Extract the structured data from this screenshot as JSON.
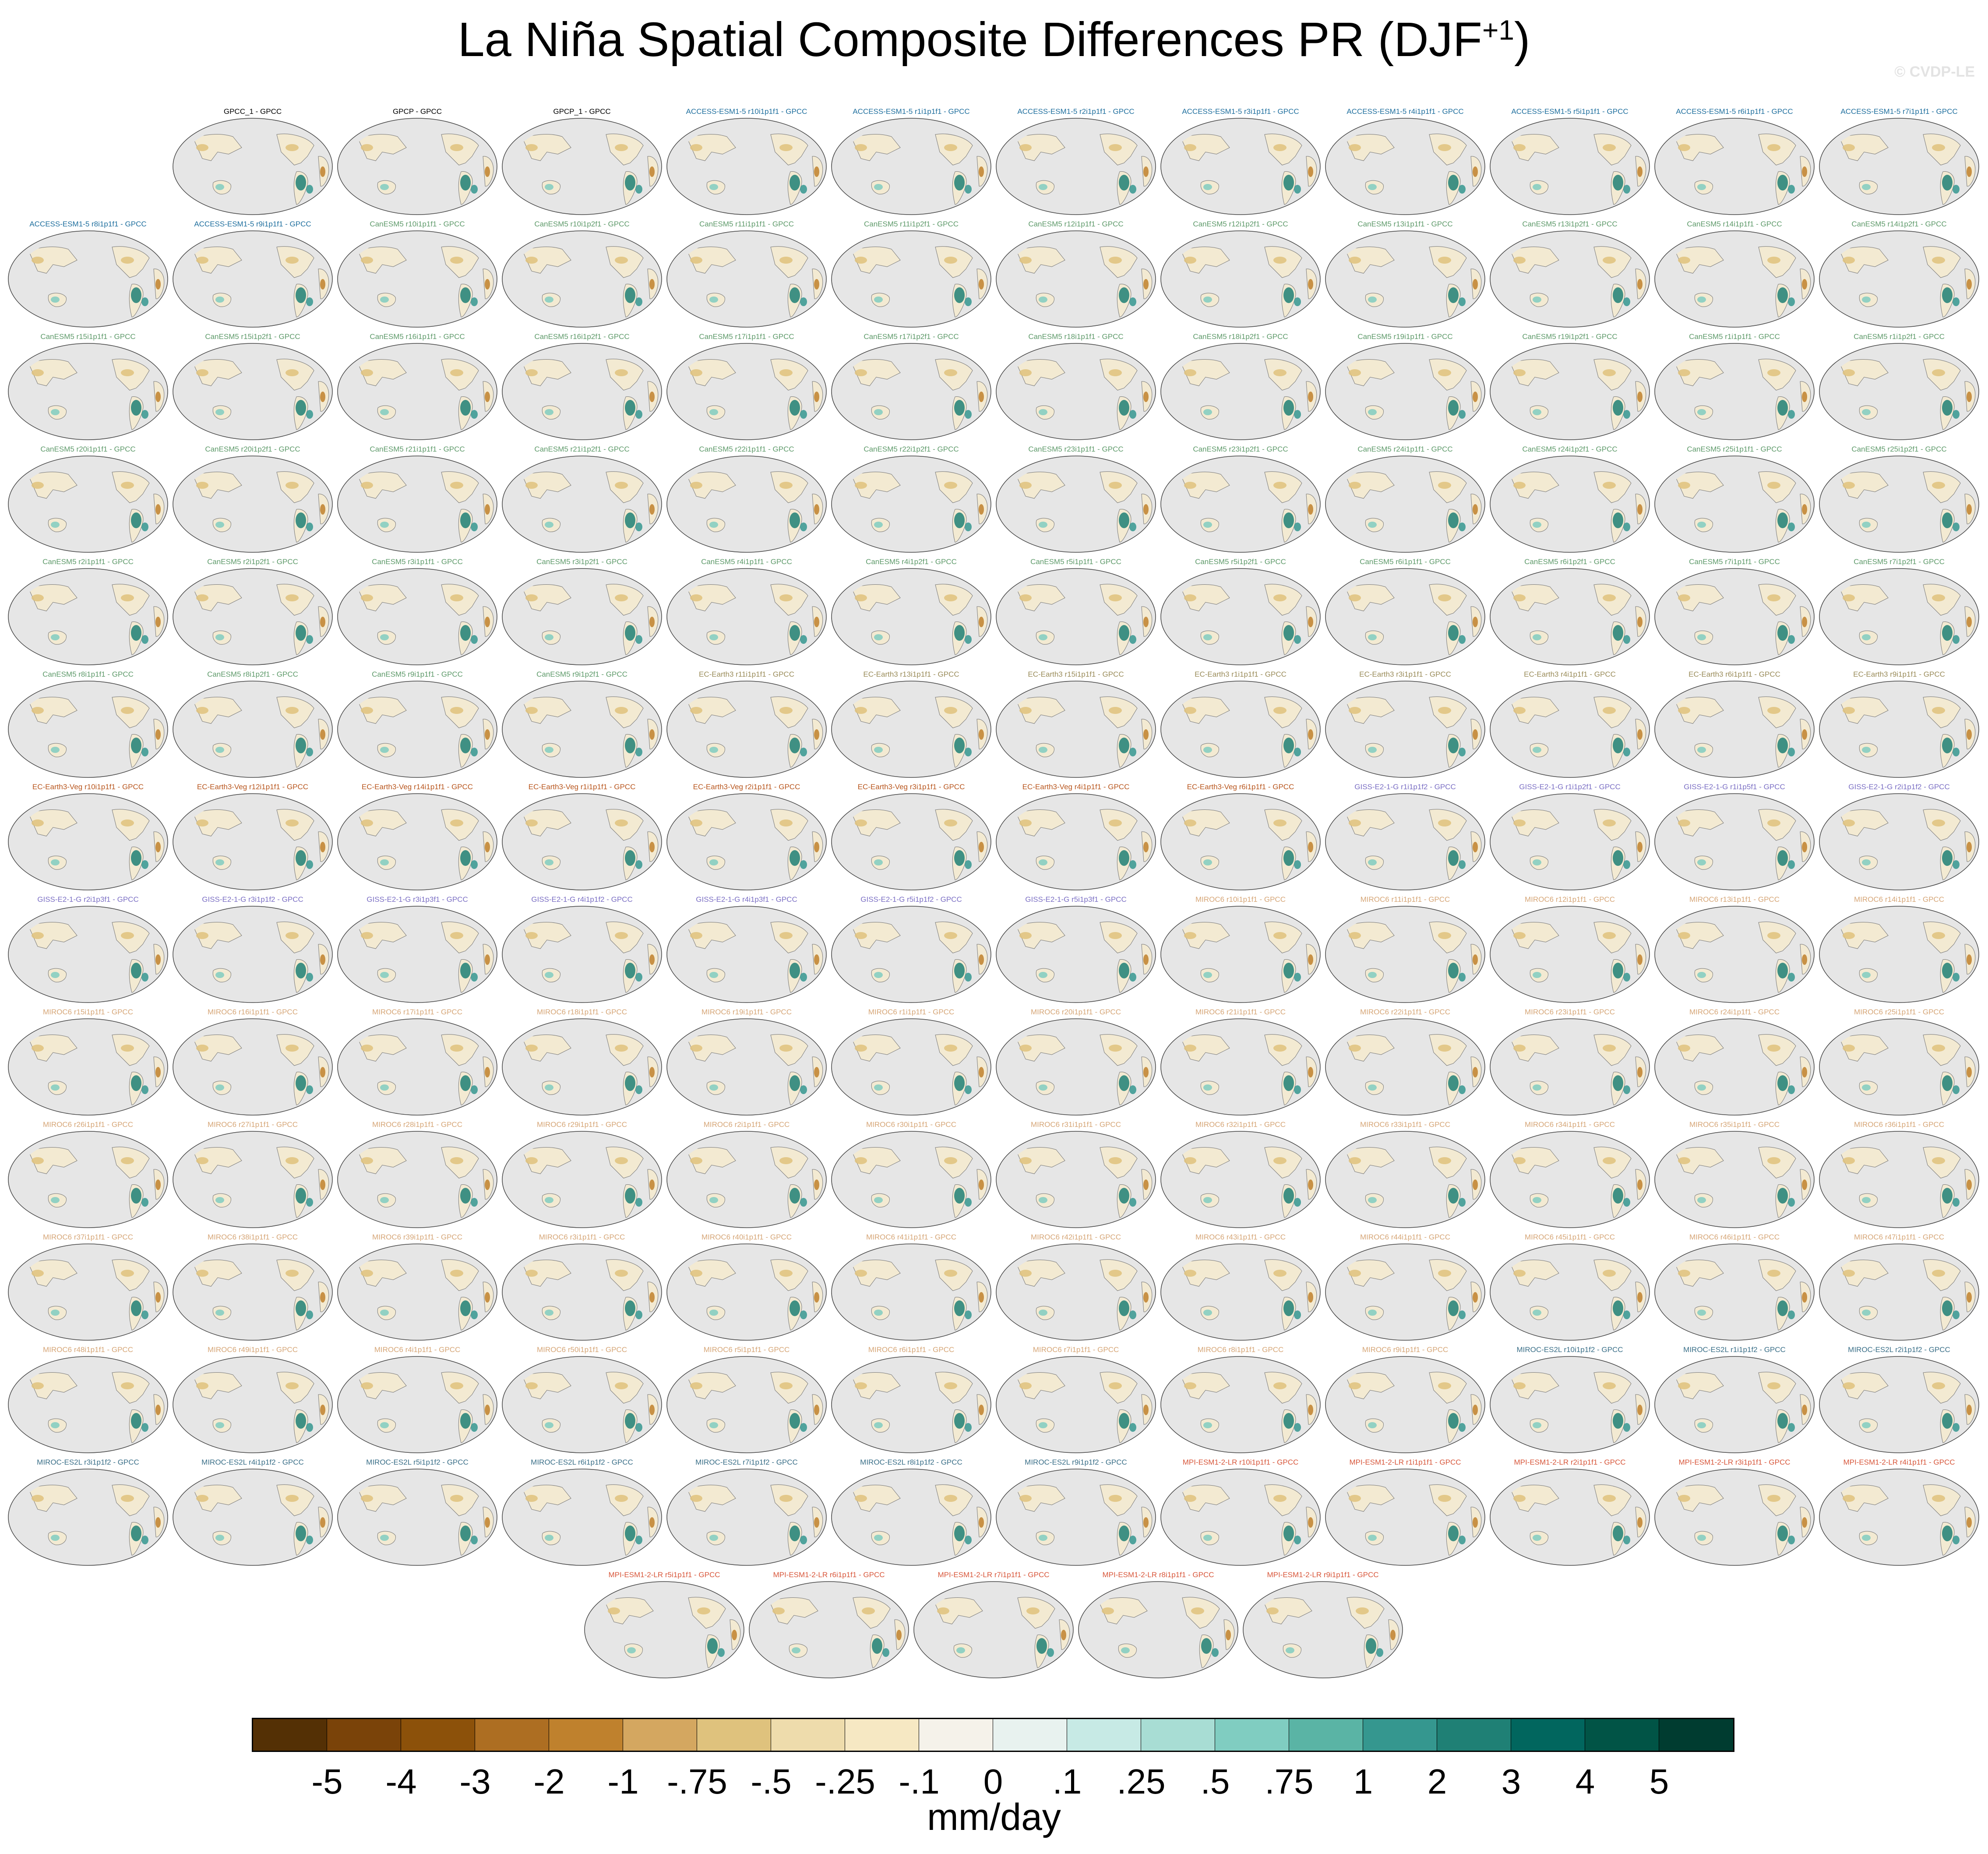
{
  "title": {
    "main": "La Niña Spatial Composite Differences PR (DJF",
    "superscript": "+1",
    "close": ")"
  },
  "watermark": "© CVDP-LE",
  "label_colors": {
    "obs": "#000000",
    "ACCESS": "#1f6f9e",
    "CanESM5": "#5e9a6a",
    "EC-Earth3": "#9a8c5a",
    "EC-Earth3-Veg": "#b8561e",
    "GISS": "#7b6fc4",
    "MIROC6": "#d6a677",
    "MIROC-ES2L": "#3a6f88",
    "MPI": "#d8573b"
  },
  "panels": [
    {
      "label": "GPCC_1 - GPCC",
      "group": "obs"
    },
    {
      "label": "GPCP - GPCC",
      "group": "obs"
    },
    {
      "label": "GPCP_1 - GPCC",
      "group": "obs"
    },
    {
      "label": "ACCESS-ESM1-5 r10i1p1f1 - GPCC",
      "group": "ACCESS"
    },
    {
      "label": "ACCESS-ESM1-5 r1i1p1f1 - GPCC",
      "group": "ACCESS"
    },
    {
      "label": "ACCESS-ESM1-5 r2i1p1f1 - GPCC",
      "group": "ACCESS"
    },
    {
      "label": "ACCESS-ESM1-5 r3i1p1f1 - GPCC",
      "group": "ACCESS"
    },
    {
      "label": "ACCESS-ESM1-5 r4i1p1f1 - GPCC",
      "group": "ACCESS"
    },
    {
      "label": "ACCESS-ESM1-5 r5i1p1f1 - GPCC",
      "group": "ACCESS"
    },
    {
      "label": "ACCESS-ESM1-5 r6i1p1f1 - GPCC",
      "group": "ACCESS"
    },
    {
      "label": "ACCESS-ESM1-5 r7i1p1f1 - GPCC",
      "group": "ACCESS"
    },
    {
      "label": "ACCESS-ESM1-5 r8i1p1f1 - GPCC",
      "group": "ACCESS"
    },
    {
      "label": "ACCESS-ESM1-5 r9i1p1f1 - GPCC",
      "group": "ACCESS"
    },
    {
      "label": "CanESM5 r10i1p1f1 - GPCC",
      "group": "CanESM5"
    },
    {
      "label": "CanESM5 r10i1p2f1 - GPCC",
      "group": "CanESM5"
    },
    {
      "label": "CanESM5 r11i1p1f1 - GPCC",
      "group": "CanESM5"
    },
    {
      "label": "CanESM5 r11i1p2f1 - GPCC",
      "group": "CanESM5"
    },
    {
      "label": "CanESM5 r12i1p1f1 - GPCC",
      "group": "CanESM5"
    },
    {
      "label": "CanESM5 r12i1p2f1 - GPCC",
      "group": "CanESM5"
    },
    {
      "label": "CanESM5 r13i1p1f1 - GPCC",
      "group": "CanESM5"
    },
    {
      "label": "CanESM5 r13i1p2f1 - GPCC",
      "group": "CanESM5"
    },
    {
      "label": "CanESM5 r14i1p1f1 - GPCC",
      "group": "CanESM5"
    },
    {
      "label": "CanESM5 r14i1p2f1 - GPCC",
      "group": "CanESM5"
    },
    {
      "label": "CanESM5 r15i1p1f1 - GPCC",
      "group": "CanESM5"
    },
    {
      "label": "CanESM5 r15i1p2f1 - GPCC",
      "group": "CanESM5"
    },
    {
      "label": "CanESM5 r16i1p1f1 - GPCC",
      "group": "CanESM5"
    },
    {
      "label": "CanESM5 r16i1p2f1 - GPCC",
      "group": "CanESM5"
    },
    {
      "label": "CanESM5 r17i1p1f1 - GPCC",
      "group": "CanESM5"
    },
    {
      "label": "CanESM5 r17i1p2f1 - GPCC",
      "group": "CanESM5"
    },
    {
      "label": "CanESM5 r18i1p1f1 - GPCC",
      "group": "CanESM5"
    },
    {
      "label": "CanESM5 r18i1p2f1 - GPCC",
      "group": "CanESM5"
    },
    {
      "label": "CanESM5 r19i1p1f1 - GPCC",
      "group": "CanESM5"
    },
    {
      "label": "CanESM5 r19i1p2f1 - GPCC",
      "group": "CanESM5"
    },
    {
      "label": "CanESM5 r1i1p1f1 - GPCC",
      "group": "CanESM5"
    },
    {
      "label": "CanESM5 r1i1p2f1 - GPCC",
      "group": "CanESM5"
    },
    {
      "label": "CanESM5 r20i1p1f1 - GPCC",
      "group": "CanESM5"
    },
    {
      "label": "CanESM5 r20i1p2f1 - GPCC",
      "group": "CanESM5"
    },
    {
      "label": "CanESM5 r21i1p1f1 - GPCC",
      "group": "CanESM5"
    },
    {
      "label": "CanESM5 r21i1p2f1 - GPCC",
      "group": "CanESM5"
    },
    {
      "label": "CanESM5 r22i1p1f1 - GPCC",
      "group": "CanESM5"
    },
    {
      "label": "CanESM5 r22i1p2f1 - GPCC",
      "group": "CanESM5"
    },
    {
      "label": "CanESM5 r23i1p1f1 - GPCC",
      "group": "CanESM5"
    },
    {
      "label": "CanESM5 r23i1p2f1 - GPCC",
      "group": "CanESM5"
    },
    {
      "label": "CanESM5 r24i1p1f1 - GPCC",
      "group": "CanESM5"
    },
    {
      "label": "CanESM5 r24i1p2f1 - GPCC",
      "group": "CanESM5"
    },
    {
      "label": "CanESM5 r25i1p1f1 - GPCC",
      "group": "CanESM5"
    },
    {
      "label": "CanESM5 r25i1p2f1 - GPCC",
      "group": "CanESM5"
    },
    {
      "label": "CanESM5 r2i1p1f1 - GPCC",
      "group": "CanESM5"
    },
    {
      "label": "CanESM5 r2i1p2f1 - GPCC",
      "group": "CanESM5"
    },
    {
      "label": "CanESM5 r3i1p1f1 - GPCC",
      "group": "CanESM5"
    },
    {
      "label": "CanESM5 r3i1p2f1 - GPCC",
      "group": "CanESM5"
    },
    {
      "label": "CanESM5 r4i1p1f1 - GPCC",
      "group": "CanESM5"
    },
    {
      "label": "CanESM5 r4i1p2f1 - GPCC",
      "group": "CanESM5"
    },
    {
      "label": "CanESM5 r5i1p1f1 - GPCC",
      "group": "CanESM5"
    },
    {
      "label": "CanESM5 r5i1p2f1 - GPCC",
      "group": "CanESM5"
    },
    {
      "label": "CanESM5 r6i1p1f1 - GPCC",
      "group": "CanESM5"
    },
    {
      "label": "CanESM5 r6i1p2f1 - GPCC",
      "group": "CanESM5"
    },
    {
      "label": "CanESM5 r7i1p1f1 - GPCC",
      "group": "CanESM5"
    },
    {
      "label": "CanESM5 r7i1p2f1 - GPCC",
      "group": "CanESM5"
    },
    {
      "label": "CanESM5 r8i1p1f1 - GPCC",
      "group": "CanESM5"
    },
    {
      "label": "CanESM5 r8i1p2f1 - GPCC",
      "group": "CanESM5"
    },
    {
      "label": "CanESM5 r9i1p1f1 - GPCC",
      "group": "CanESM5"
    },
    {
      "label": "CanESM5 r9i1p2f1 - GPCC",
      "group": "CanESM5"
    },
    {
      "label": "EC-Earth3 r11i1p1f1 - GPCC",
      "group": "EC-Earth3"
    },
    {
      "label": "EC-Earth3 r13i1p1f1 - GPCC",
      "group": "EC-Earth3"
    },
    {
      "label": "EC-Earth3 r15i1p1f1 - GPCC",
      "group": "EC-Earth3"
    },
    {
      "label": "EC-Earth3 r1i1p1f1 - GPCC",
      "group": "EC-Earth3"
    },
    {
      "label": "EC-Earth3 r3i1p1f1 - GPCC",
      "group": "EC-Earth3"
    },
    {
      "label": "EC-Earth3 r4i1p1f1 - GPCC",
      "group": "EC-Earth3"
    },
    {
      "label": "EC-Earth3 r6i1p1f1 - GPCC",
      "group": "EC-Earth3"
    },
    {
      "label": "EC-Earth3 r9i1p1f1 - GPCC",
      "group": "EC-Earth3"
    },
    {
      "label": "EC-Earth3-Veg r10i1p1f1 - GPCC",
      "group": "EC-Earth3-Veg"
    },
    {
      "label": "EC-Earth3-Veg r12i1p1f1 - GPCC",
      "group": "EC-Earth3-Veg"
    },
    {
      "label": "EC-Earth3-Veg r14i1p1f1 - GPCC",
      "group": "EC-Earth3-Veg"
    },
    {
      "label": "EC-Earth3-Veg r1i1p1f1 - GPCC",
      "group": "EC-Earth3-Veg"
    },
    {
      "label": "EC-Earth3-Veg r2i1p1f1 - GPCC",
      "group": "EC-Earth3-Veg"
    },
    {
      "label": "EC-Earth3-Veg r3i1p1f1 - GPCC",
      "group": "EC-Earth3-Veg"
    },
    {
      "label": "EC-Earth3-Veg r4i1p1f1 - GPCC",
      "group": "EC-Earth3-Veg"
    },
    {
      "label": "EC-Earth3-Veg r6i1p1f1 - GPCC",
      "group": "EC-Earth3-Veg"
    },
    {
      "label": "GISS-E2-1-G r1i1p1f2 - GPCC",
      "group": "GISS"
    },
    {
      "label": "GISS-E2-1-G r1i1p2f1 - GPCC",
      "group": "GISS"
    },
    {
      "label": "GISS-E2-1-G r1i1p5f1 - GPCC",
      "group": "GISS"
    },
    {
      "label": "GISS-E2-1-G r2i1p1f2 - GPCC",
      "group": "GISS"
    },
    {
      "label": "GISS-E2-1-G r2i1p3f1 - GPCC",
      "group": "GISS"
    },
    {
      "label": "GISS-E2-1-G r3i1p1f2 - GPCC",
      "group": "GISS"
    },
    {
      "label": "GISS-E2-1-G r3i1p3f1 - GPCC",
      "group": "GISS"
    },
    {
      "label": "GISS-E2-1-G r4i1p1f2 - GPCC",
      "group": "GISS"
    },
    {
      "label": "GISS-E2-1-G r4i1p3f1 - GPCC",
      "group": "GISS"
    },
    {
      "label": "GISS-E2-1-G r5i1p1f2 - GPCC",
      "group": "GISS"
    },
    {
      "label": "GISS-E2-1-G r5i1p3f1 - GPCC",
      "group": "GISS"
    },
    {
      "label": "MIROC6 r10i1p1f1 - GPCC",
      "group": "MIROC6"
    },
    {
      "label": "MIROC6 r11i1p1f1 - GPCC",
      "group": "MIROC6"
    },
    {
      "label": "MIROC6 r12i1p1f1 - GPCC",
      "group": "MIROC6"
    },
    {
      "label": "MIROC6 r13i1p1f1 - GPCC",
      "group": "MIROC6"
    },
    {
      "label": "MIROC6 r14i1p1f1 - GPCC",
      "group": "MIROC6"
    },
    {
      "label": "MIROC6 r15i1p1f1 - GPCC",
      "group": "MIROC6"
    },
    {
      "label": "MIROC6 r16i1p1f1 - GPCC",
      "group": "MIROC6"
    },
    {
      "label": "MIROC6 r17i1p1f1 - GPCC",
      "group": "MIROC6"
    },
    {
      "label": "MIROC6 r18i1p1f1 - GPCC",
      "group": "MIROC6"
    },
    {
      "label": "MIROC6 r19i1p1f1 - GPCC",
      "group": "MIROC6"
    },
    {
      "label": "MIROC6 r1i1p1f1 - GPCC",
      "group": "MIROC6"
    },
    {
      "label": "MIROC6 r20i1p1f1 - GPCC",
      "group": "MIROC6"
    },
    {
      "label": "MIROC6 r21i1p1f1 - GPCC",
      "group": "MIROC6"
    },
    {
      "label": "MIROC6 r22i1p1f1 - GPCC",
      "group": "MIROC6"
    },
    {
      "label": "MIROC6 r23i1p1f1 - GPCC",
      "group": "MIROC6"
    },
    {
      "label": "MIROC6 r24i1p1f1 - GPCC",
      "group": "MIROC6"
    },
    {
      "label": "MIROC6 r25i1p1f1 - GPCC",
      "group": "MIROC6"
    },
    {
      "label": "MIROC6 r26i1p1f1 - GPCC",
      "group": "MIROC6"
    },
    {
      "label": "MIROC6 r27i1p1f1 - GPCC",
      "group": "MIROC6"
    },
    {
      "label": "MIROC6 r28i1p1f1 - GPCC",
      "group": "MIROC6"
    },
    {
      "label": "MIROC6 r29i1p1f1 - GPCC",
      "group": "MIROC6"
    },
    {
      "label": "MIROC6 r2i1p1f1 - GPCC",
      "group": "MIROC6"
    },
    {
      "label": "MIROC6 r30i1p1f1 - GPCC",
      "group": "MIROC6"
    },
    {
      "label": "MIROC6 r31i1p1f1 - GPCC",
      "group": "MIROC6"
    },
    {
      "label": "MIROC6 r32i1p1f1 - GPCC",
      "group": "MIROC6"
    },
    {
      "label": "MIROC6 r33i1p1f1 - GPCC",
      "group": "MIROC6"
    },
    {
      "label": "MIROC6 r34i1p1f1 - GPCC",
      "group": "MIROC6"
    },
    {
      "label": "MIROC6 r35i1p1f1 - GPCC",
      "group": "MIROC6"
    },
    {
      "label": "MIROC6 r36i1p1f1 - GPCC",
      "group": "MIROC6"
    },
    {
      "label": "MIROC6 r37i1p1f1 - GPCC",
      "group": "MIROC6"
    },
    {
      "label": "MIROC6 r38i1p1f1 - GPCC",
      "group": "MIROC6"
    },
    {
      "label": "MIROC6 r39i1p1f1 - GPCC",
      "group": "MIROC6"
    },
    {
      "label": "MIROC6 r3i1p1f1 - GPCC",
      "group": "MIROC6"
    },
    {
      "label": "MIROC6 r40i1p1f1 - GPCC",
      "group": "MIROC6"
    },
    {
      "label": "MIROC6 r41i1p1f1 - GPCC",
      "group": "MIROC6"
    },
    {
      "label": "MIROC6 r42i1p1f1 - GPCC",
      "group": "MIROC6"
    },
    {
      "label": "MIROC6 r43i1p1f1 - GPCC",
      "group": "MIROC6"
    },
    {
      "label": "MIROC6 r44i1p1f1 - GPCC",
      "group": "MIROC6"
    },
    {
      "label": "MIROC6 r45i1p1f1 - GPCC",
      "group": "MIROC6"
    },
    {
      "label": "MIROC6 r46i1p1f1 - GPCC",
      "group": "MIROC6"
    },
    {
      "label": "MIROC6 r47i1p1f1 - GPCC",
      "group": "MIROC6"
    },
    {
      "label": "MIROC6 r48i1p1f1 - GPCC",
      "group": "MIROC6"
    },
    {
      "label": "MIROC6 r49i1p1f1 - GPCC",
      "group": "MIROC6"
    },
    {
      "label": "MIROC6 r4i1p1f1 - GPCC",
      "group": "MIROC6"
    },
    {
      "label": "MIROC6 r50i1p1f1 - GPCC",
      "group": "MIROC6"
    },
    {
      "label": "MIROC6 r5i1p1f1 - GPCC",
      "group": "MIROC6"
    },
    {
      "label": "MIROC6 r6i1p1f1 - GPCC",
      "group": "MIROC6"
    },
    {
      "label": "MIROC6 r7i1p1f1 - GPCC",
      "group": "MIROC6"
    },
    {
      "label": "MIROC6 r8i1p1f1 - GPCC",
      "group": "MIROC6"
    },
    {
      "label": "MIROC6 r9i1p1f1 - GPCC",
      "group": "MIROC6"
    },
    {
      "label": "MIROC-ES2L r10i1p1f2 - GPCC",
      "group": "MIROC-ES2L"
    },
    {
      "label": "MIROC-ES2L r1i1p1f2 - GPCC",
      "group": "MIROC-ES2L"
    },
    {
      "label": "MIROC-ES2L r2i1p1f2 - GPCC",
      "group": "MIROC-ES2L"
    },
    {
      "label": "MIROC-ES2L r3i1p1f2 - GPCC",
      "group": "MIROC-ES2L"
    },
    {
      "label": "MIROC-ES2L r4i1p1f2 - GPCC",
      "group": "MIROC-ES2L"
    },
    {
      "label": "MIROC-ES2L r5i1p1f2 - GPCC",
      "group": "MIROC-ES2L"
    },
    {
      "label": "MIROC-ES2L r6i1p1f2 - GPCC",
      "group": "MIROC-ES2L"
    },
    {
      "label": "MIROC-ES2L r7i1p1f2 - GPCC",
      "group": "MIROC-ES2L"
    },
    {
      "label": "MIROC-ES2L r8i1p1f2 - GPCC",
      "group": "MIROC-ES2L"
    },
    {
      "label": "MIROC-ES2L r9i1p1f2 - GPCC",
      "group": "MIROC-ES2L"
    },
    {
      "label": "MPI-ESM1-2-LR r10i1p1f1 - GPCC",
      "group": "MPI"
    },
    {
      "label": "MPI-ESM1-2-LR r1i1p1f1 - GPCC",
      "group": "MPI"
    },
    {
      "label": "MPI-ESM1-2-LR r2i1p1f1 - GPCC",
      "group": "MPI"
    },
    {
      "label": "MPI-ESM1-2-LR r3i1p1f1 - GPCC",
      "group": "MPI"
    },
    {
      "label": "MPI-ESM1-2-LR r4i1p1f1 - GPCC",
      "group": "MPI"
    },
    {
      "label": "MPI-ESM1-2-LR r5i1p1f1 - GPCC",
      "group": "MPI"
    },
    {
      "label": "MPI-ESM1-2-LR r6i1p1f1 - GPCC",
      "group": "MPI"
    },
    {
      "label": "MPI-ESM1-2-LR r7i1p1f1 - GPCC",
      "group": "MPI"
    },
    {
      "label": "MPI-ESM1-2-LR r8i1p1f1 - GPCC",
      "group": "MPI"
    },
    {
      "label": "MPI-ESM1-2-LR r9i1p1f1 - GPCC",
      "group": "MPI"
    }
  ],
  "colorbar": {
    "colors": [
      "#543005",
      "#7a4309",
      "#8c510a",
      "#ad6e22",
      "#bf812d",
      "#d4a760",
      "#dfc27d",
      "#eedcac",
      "#f6e8c3",
      "#f5f2ea",
      "#e8f2ef",
      "#c7eae5",
      "#a8ddd4",
      "#80cdc1",
      "#5ab4a5",
      "#35978f",
      "#1f8075",
      "#01665e",
      "#015446",
      "#003c30"
    ],
    "tick_labels": [
      "-5",
      "-4",
      "-3",
      "-2",
      "-1",
      "-.75",
      "-.5",
      "-.25",
      "-.1",
      "0",
      ".1",
      ".25",
      ".5",
      ".75",
      "1",
      "2",
      "3",
      "4",
      "5"
    ],
    "units": "mm/day"
  }
}
